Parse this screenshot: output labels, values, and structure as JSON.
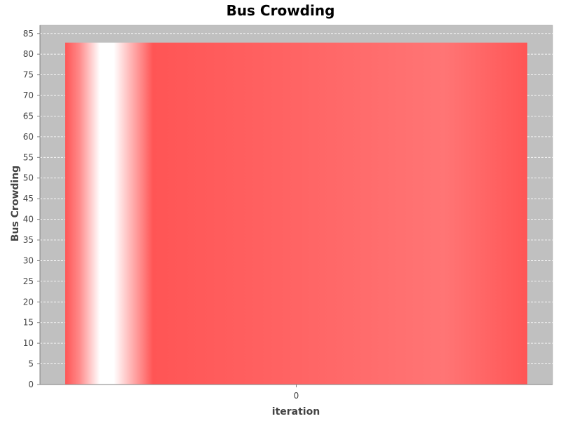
{
  "chart_data": {
    "type": "bar",
    "title": "Bus Crowding",
    "xlabel": "iteration",
    "ylabel": "Bus Crowding",
    "categories": [
      "0"
    ],
    "series": [
      {
        "values": [
          82.8
        ]
      }
    ],
    "ylim": [
      0,
      87
    ],
    "yticks": [
      0,
      5,
      10,
      15,
      20,
      25,
      30,
      35,
      40,
      45,
      50,
      55,
      60,
      65,
      70,
      75,
      80,
      85
    ],
    "grid": true,
    "legend": "none",
    "colors": {
      "plot_background": "#c0c0c0",
      "bar": "#ff5555",
      "bar_highlight": "#ffffff",
      "gridline": "#ffffff"
    }
  }
}
